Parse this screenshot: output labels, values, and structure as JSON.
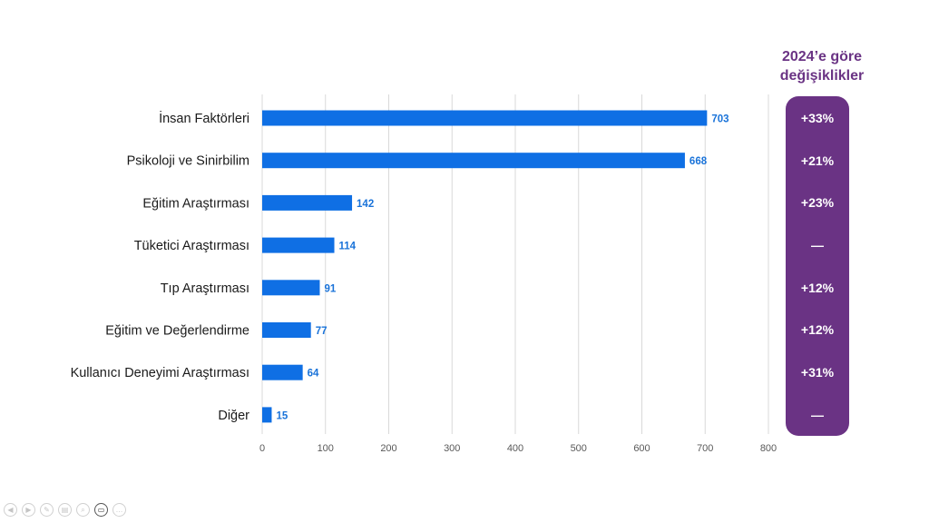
{
  "chart_data": {
    "type": "bar",
    "orientation": "horizontal",
    "categories": [
      "İnsan Faktörleri",
      "Psikoloji ve Sinirbilim",
      "Eğitim Araştırması",
      "Tüketici Araştırması",
      "Tıp Araştırması",
      "Eğitim ve Değerlendirme",
      "Kullanıcı Deneyimi Araştırması",
      "Diğer"
    ],
    "values": [
      703,
      668,
      142,
      114,
      91,
      77,
      64,
      15
    ],
    "xlim": [
      0,
      800
    ],
    "xticks": [
      0,
      100,
      200,
      300,
      400,
      500,
      600,
      700,
      800
    ],
    "grid": "vertical",
    "bar_color": "#0f6fe4",
    "label_color": "#1a73d9"
  },
  "changes": {
    "title_line1": "2024’e göre",
    "title_line2": "değişiklikler",
    "items": [
      "+33%",
      "+21%",
      "+23%",
      "—",
      "+12%",
      "+12%",
      "+31%",
      "—"
    ],
    "panel_color": "#6a3384"
  },
  "controls": [
    {
      "icon": "prev-icon",
      "glyph": "◀"
    },
    {
      "icon": "next-icon",
      "glyph": "▶"
    },
    {
      "icon": "pen-icon",
      "glyph": "✎"
    },
    {
      "icon": "slides-icon",
      "glyph": "▤"
    },
    {
      "icon": "zoom-icon",
      "glyph": "⌕"
    },
    {
      "icon": "camera-icon",
      "glyph": "▭"
    },
    {
      "icon": "more-icon",
      "glyph": "…"
    }
  ]
}
